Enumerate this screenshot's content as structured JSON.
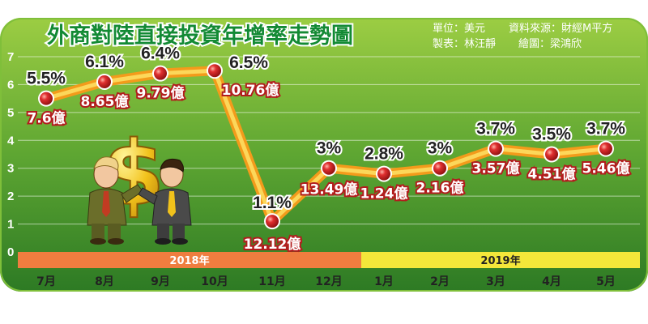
{
  "chart_data": {
    "type": "line",
    "title": "外商對陸直接投資年增率走勢圖",
    "unit_note": "單位：美元",
    "source_note": "資料來源：財經M平方",
    "maker_note": "製表：林汪靜",
    "illustrator_note": "繪圖：梁鴻欣",
    "categories": [
      "7月",
      "8月",
      "9月",
      "10月",
      "11月",
      "12月",
      "1月",
      "2月",
      "3月",
      "4月",
      "5月"
    ],
    "years": [
      {
        "label": "2018年",
        "months": 6
      },
      {
        "label": "2019年",
        "months": 5
      }
    ],
    "series": [
      {
        "values": [
          5.5,
          6.1,
          6.4,
          6.5,
          1.1,
          3.0,
          2.8,
          3.0,
          3.7,
          3.5,
          3.7
        ],
        "value_labels": [
          "5.5%",
          "6.1%",
          "6.4%",
          "6.5%",
          "1.1%",
          "3%",
          "2.8%",
          "3%",
          "3.7%",
          "3.5%",
          "3.7%"
        ],
        "amount_labels": [
          "7.6億",
          "8.65億",
          "9.79億",
          "10.76億",
          "12.12億",
          "13.49億",
          "1.24億",
          "2.16億",
          "3.57億",
          "4.51億",
          "5.46億"
        ]
      }
    ],
    "ylim": [
      0,
      7
    ],
    "yticks": [
      "0",
      "1",
      "2",
      "3",
      "4",
      "5",
      "6",
      "7"
    ],
    "grid": true,
    "colors": {
      "background_top": "#8fc43a",
      "background_bottom": "#2f7d25",
      "line_outer": "#f39b1b",
      "line_inner": "#fcd75a",
      "marker": "#d42222",
      "year_2018_band": "#ef7d3f",
      "year_2019_band": "#f4e73a"
    }
  }
}
